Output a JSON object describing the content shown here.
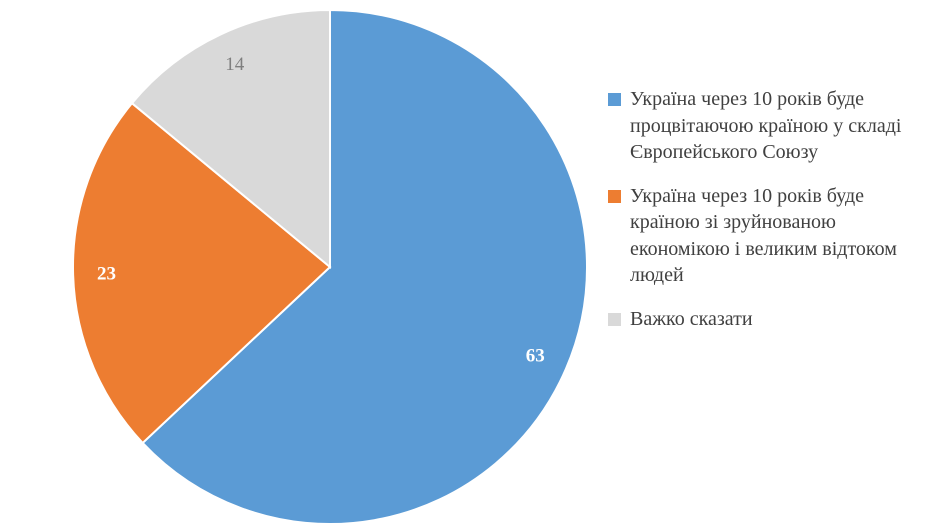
{
  "chart_data": {
    "type": "pie",
    "slices": [
      {
        "label": "Україна через 10 років буде процвітаючою країною у складі Європейського Союзу",
        "value": 63,
        "color": "#5B9BD5",
        "label_color": "#ffffff"
      },
      {
        "label": "Україна через 10 років буде країною зі зруйнованою економікою і великим відтоком людей",
        "value": 23,
        "color": "#ED7D31",
        "label_color": "#ffffff"
      },
      {
        "label": "Важко сказати",
        "value": 14,
        "color": "#D9D9D9",
        "label_color": "#7f7f7f"
      }
    ],
    "legend_position": "right",
    "start": "top, clockwise"
  }
}
